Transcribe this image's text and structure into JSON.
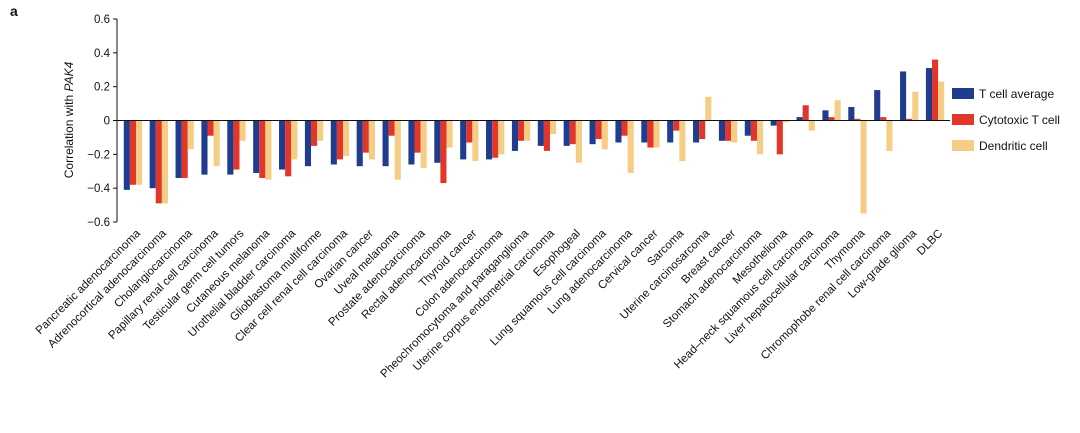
{
  "panel_label": "a",
  "chart_data": {
    "type": "bar",
    "ylabel_prefix": "Correlation with ",
    "ylabel_gene": "PAK4",
    "ylim": [
      -0.6,
      0.6
    ],
    "yticks": [
      "0.6",
      "0.4",
      "0.2",
      "0",
      "−0.2",
      "−0.4",
      "−0.6"
    ],
    "ytick_values": [
      0.6,
      0.4,
      0.2,
      0,
      -0.2,
      -0.4,
      -0.6
    ],
    "legend_position": "right",
    "categories": [
      "Pancreatic adenocarcinoma",
      "Adrenocortical adenocarcinoma",
      "Cholangiocarcinoma",
      "Papillary renal cell carcinoma",
      "Testicular germ cell tumors",
      "Cutaneous melanoma",
      "Urothelial bladder carcinoma",
      "Glioblastoma multiforme",
      "Clear cell renal cell carcinoma",
      "Ovarian cancer",
      "Uveal melanoma",
      "Prostate adenocarcinoma",
      "Rectal adenocarcinoma",
      "Thyroid cancer",
      "Colon adenocarcinoma",
      "Pheochromocytoma and paraganglioma",
      "Uterine corpus endometrial carcinoma",
      "Esophogeal",
      "Lung squamous cell carcinoma",
      "Lung adenocarcinoma",
      "Cervical cancer",
      "Sarcoma",
      "Uterine carcinosarcoma",
      "Breast cancer",
      "Stomach adenocarcinoma",
      "Mesothelioma",
      "Head–neck squamous cell carcinoma",
      "Liver hepatocellular carcinoma",
      "Thymoma",
      "Chromophobe renal cell carcinoma",
      "Low-grade glioma",
      "DLBC"
    ],
    "series": [
      {
        "name": "T cell average",
        "color": "#1f3c8f",
        "values": [
          -0.41,
          -0.4,
          -0.34,
          -0.32,
          -0.32,
          -0.31,
          -0.29,
          -0.27,
          -0.26,
          -0.27,
          -0.27,
          -0.26,
          -0.25,
          -0.23,
          -0.23,
          -0.18,
          -0.15,
          -0.15,
          -0.14,
          -0.13,
          -0.13,
          -0.13,
          -0.13,
          -0.12,
          -0.09,
          -0.03,
          0.02,
          0.06,
          0.08,
          0.18,
          0.29,
          0.31
        ]
      },
      {
        "name": "Cytotoxic T cell",
        "color": "#e2362b",
        "values": [
          -0.38,
          -0.49,
          -0.34,
          -0.09,
          -0.29,
          -0.34,
          -0.33,
          -0.15,
          -0.23,
          -0.19,
          -0.09,
          -0.19,
          -0.37,
          -0.13,
          -0.22,
          -0.12,
          -0.18,
          -0.14,
          -0.11,
          -0.09,
          -0.16,
          -0.06,
          -0.11,
          -0.12,
          -0.12,
          -0.2,
          0.09,
          0.02,
          0.01,
          0.02,
          0.01,
          0.36
        ]
      },
      {
        "name": "Dendritic cell",
        "color": "#f5cd84",
        "values": [
          -0.38,
          -0.49,
          -0.17,
          -0.27,
          -0.12,
          -0.35,
          -0.23,
          -0.12,
          -0.21,
          -0.23,
          -0.35,
          -0.28,
          -0.16,
          -0.24,
          -0.2,
          -0.12,
          -0.08,
          -0.25,
          -0.17,
          -0.31,
          -0.16,
          -0.24,
          0.14,
          -0.13,
          -0.2,
          -0.01,
          -0.06,
          0.12,
          -0.55,
          -0.18,
          0.17,
          0.23
        ]
      }
    ]
  }
}
